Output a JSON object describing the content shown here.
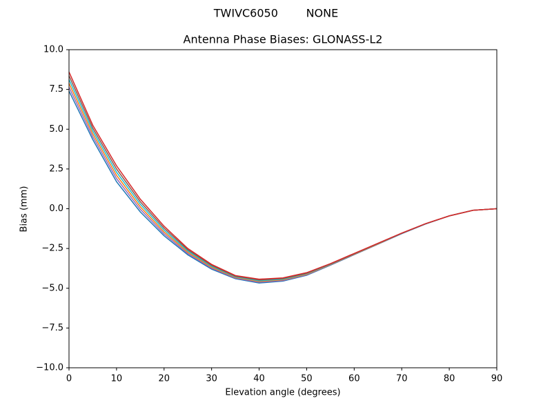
{
  "chart_data": {
    "type": "line",
    "suptitle": "TWIVC6050        NONE",
    "title": "Antenna Phase Biases: GLONASS-L2",
    "xlabel": "Elevation angle (degrees)",
    "ylabel": "Bias (mm)",
    "x": [
      0,
      5,
      10,
      15,
      20,
      25,
      30,
      35,
      40,
      45,
      50,
      55,
      60,
      65,
      70,
      75,
      80,
      85,
      90
    ],
    "xlim": [
      0,
      90
    ],
    "xticks": [
      0,
      10,
      20,
      30,
      40,
      50,
      60,
      70,
      80,
      90
    ],
    "ylim": [
      -10,
      10
    ],
    "yticks": [
      {
        "value": -10,
        "label": "−10.0"
      },
      {
        "value": -7.5,
        "label": "−7.5"
      },
      {
        "value": -5,
        "label": "−5.0"
      },
      {
        "value": -2.5,
        "label": "−2.5"
      },
      {
        "value": 0,
        "label": "0.0"
      },
      {
        "value": 2.5,
        "label": "2.5"
      },
      {
        "value": 5,
        "label": "5.0"
      },
      {
        "value": 7.5,
        "label": "7.5"
      },
      {
        "value": 10,
        "label": "10.0"
      }
    ],
    "series": [
      {
        "color": "#1f77b4",
        "values": [
          7.4,
          4.35,
          1.7,
          -0.2,
          -1.7,
          -2.9,
          -3.8,
          -4.4,
          -4.67,
          -4.55,
          -4.18,
          -3.55,
          -2.89,
          -2.23,
          -1.57,
          -0.96,
          -0.45,
          -0.1,
          0
        ]
      },
      {
        "color": "#9467bd",
        "values": [
          7.64,
          4.53,
          1.9,
          -0.04,
          -1.58,
          -2.82,
          -3.74,
          -4.36,
          -4.62,
          -4.51,
          -4.15,
          -3.53,
          -2.87,
          -2.22,
          -1.56,
          -0.96,
          -0.45,
          -0.1,
          0
        ]
      },
      {
        "color": "#ff7f0e",
        "values": [
          7.88,
          4.71,
          2.1,
          0.12,
          -1.46,
          -2.74,
          -3.68,
          -4.32,
          -4.57,
          -4.47,
          -4.12,
          -3.51,
          -2.86,
          -2.21,
          -1.55,
          -0.95,
          -0.45,
          -0.1,
          0
        ]
      },
      {
        "color": "#17becf",
        "values": [
          8.12,
          4.89,
          2.3,
          0.28,
          -1.34,
          -2.66,
          -3.62,
          -4.28,
          -4.53,
          -4.43,
          -4.08,
          -3.49,
          -2.84,
          -2.19,
          -1.55,
          -0.95,
          -0.45,
          -0.1,
          0
        ]
      },
      {
        "color": "#8c564b",
        "values": [
          8.36,
          5.07,
          2.5,
          0.44,
          -1.22,
          -2.58,
          -3.56,
          -4.24,
          -4.48,
          -4.39,
          -4.05,
          -3.47,
          -2.83,
          -2.18,
          -1.54,
          -0.94,
          -0.45,
          -0.1,
          0
        ]
      },
      {
        "color": "#d62728",
        "values": [
          8.6,
          5.25,
          2.7,
          0.6,
          -1.1,
          -2.5,
          -3.5,
          -4.2,
          -4.43,
          -4.35,
          -4.02,
          -3.45,
          -2.81,
          -2.17,
          -1.53,
          -0.94,
          -0.45,
          -0.1,
          0
        ]
      }
    ]
  }
}
